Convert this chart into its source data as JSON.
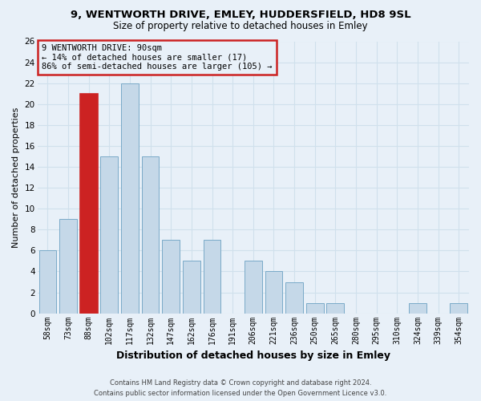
{
  "title": "9, WENTWORTH DRIVE, EMLEY, HUDDERSFIELD, HD8 9SL",
  "subtitle": "Size of property relative to detached houses in Emley",
  "xlabel": "Distribution of detached houses by size in Emley",
  "ylabel": "Number of detached properties",
  "categories": [
    "58sqm",
    "73sqm",
    "88sqm",
    "102sqm",
    "117sqm",
    "132sqm",
    "147sqm",
    "162sqm",
    "176sqm",
    "191sqm",
    "206sqm",
    "221sqm",
    "236sqm",
    "250sqm",
    "265sqm",
    "280sqm",
    "295sqm",
    "310sqm",
    "324sqm",
    "339sqm",
    "354sqm"
  ],
  "values": [
    6,
    9,
    21,
    15,
    22,
    15,
    7,
    5,
    7,
    0,
    5,
    4,
    3,
    1,
    1,
    0,
    0,
    0,
    1,
    0,
    1
  ],
  "bar_color": "#c5d8e8",
  "bar_edge_color": "#7aaac8",
  "highlight_bar_index": 2,
  "highlight_color": "#cc2222",
  "highlight_edge_color": "#cc2222",
  "annotation_text": "9 WENTWORTH DRIVE: 90sqm\n← 14% of detached houses are smaller (17)\n86% of semi-detached houses are larger (105) →",
  "annotation_box_color": "#cc2222",
  "ylim": [
    0,
    26
  ],
  "yticks": [
    0,
    2,
    4,
    6,
    8,
    10,
    12,
    14,
    16,
    18,
    20,
    22,
    24,
    26
  ],
  "footer_line1": "Contains HM Land Registry data © Crown copyright and database right 2024.",
  "footer_line2": "Contains public sector information licensed under the Open Government Licence v3.0.",
  "grid_color": "#d0e0ec",
  "background_color": "#e8f0f8",
  "title_fontsize": 9.5,
  "subtitle_fontsize": 8.5,
  "ylabel_fontsize": 8,
  "xlabel_fontsize": 9,
  "tick_fontsize": 7,
  "ann_fontsize": 7.5,
  "footer_fontsize": 6
}
